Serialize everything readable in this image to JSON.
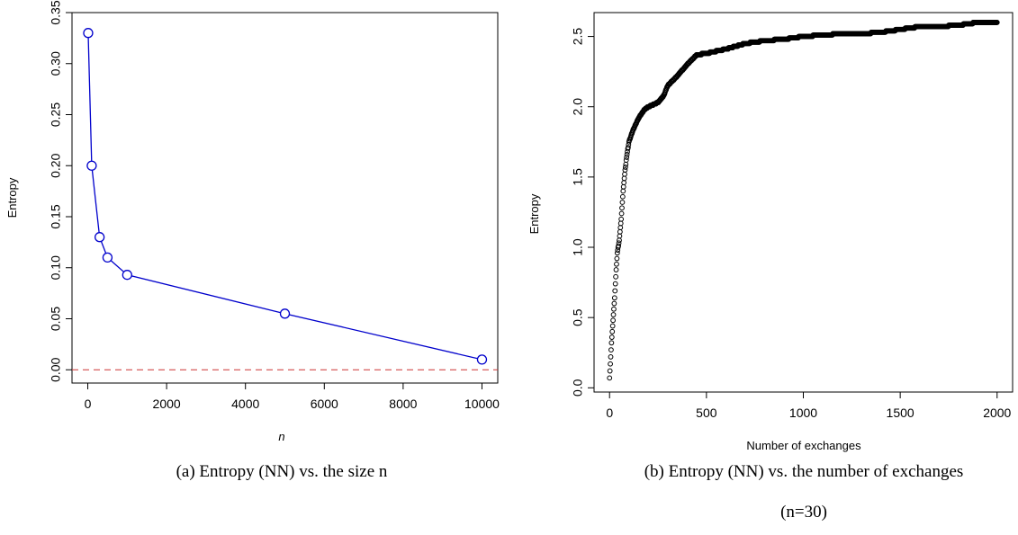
{
  "chart_data": [
    {
      "type": "line",
      "xlabel": "n",
      "ylabel": "Entropy",
      "xlim": [
        -400,
        10400
      ],
      "ylim": [
        -0.013,
        0.35
      ],
      "x_ticks": [
        0,
        2000,
        4000,
        6000,
        8000,
        10000
      ],
      "x_tick_labels": [
        "0",
        "2000",
        "4000",
        "6000",
        "8000",
        "10000"
      ],
      "y_ticks": [
        0.0,
        0.05,
        0.1,
        0.15,
        0.2,
        0.25,
        0.3,
        0.35
      ],
      "y_tick_labels": [
        "0.00",
        "0.05",
        "0.10",
        "0.15",
        "0.20",
        "0.25",
        "0.30",
        "0.35"
      ],
      "series": [
        {
          "x": [
            10,
            100,
            300,
            500,
            1000,
            5000,
            10000
          ],
          "y": [
            0.33,
            0.2,
            0.13,
            0.11,
            0.093,
            0.055,
            0.01
          ],
          "color": "#0000cc",
          "marker": "open-circle"
        }
      ],
      "reference_line": {
        "y": 0,
        "color": "#cc3333",
        "style": "dashed"
      },
      "caption": "(a) Entropy (NN) vs. the size n"
    },
    {
      "type": "scatter",
      "xlabel": "Number of exchanges",
      "ylabel": "Entropy",
      "xlim": [
        -80,
        2080
      ],
      "ylim": [
        -0.03,
        2.67
      ],
      "x_ticks": [
        0,
        500,
        1000,
        1500,
        2000
      ],
      "x_tick_labels": [
        "0",
        "500",
        "1000",
        "1500",
        "2000"
      ],
      "y_ticks": [
        0.0,
        0.5,
        1.0,
        1.5,
        2.0,
        2.5
      ],
      "y_tick_labels": [
        "0.0",
        "0.5",
        "1.0",
        "1.5",
        "2.0",
        "2.5"
      ],
      "curve_points": [
        [
          0,
          0.07
        ],
        [
          5,
          0.2
        ],
        [
          10,
          0.32
        ],
        [
          15,
          0.42
        ],
        [
          20,
          0.52
        ],
        [
          25,
          0.62
        ],
        [
          30,
          0.74
        ],
        [
          35,
          0.86
        ],
        [
          40,
          0.96
        ],
        [
          50,
          1.05
        ],
        [
          60,
          1.2
        ],
        [
          70,
          1.4
        ],
        [
          80,
          1.55
        ],
        [
          90,
          1.66
        ],
        [
          100,
          1.75
        ],
        [
          120,
          1.83
        ],
        [
          150,
          1.92
        ],
        [
          180,
          1.98
        ],
        [
          200,
          2.0
        ],
        [
          250,
          2.03
        ],
        [
          280,
          2.08
        ],
        [
          300,
          2.15
        ],
        [
          350,
          2.22
        ],
        [
          400,
          2.3
        ],
        [
          450,
          2.37
        ],
        [
          500,
          2.38
        ],
        [
          600,
          2.41
        ],
        [
          700,
          2.45
        ],
        [
          800,
          2.47
        ],
        [
          900,
          2.48
        ],
        [
          1000,
          2.5
        ],
        [
          1100,
          2.51
        ],
        [
          1200,
          2.52
        ],
        [
          1300,
          2.52
        ],
        [
          1400,
          2.53
        ],
        [
          1500,
          2.55
        ],
        [
          1600,
          2.57
        ],
        [
          1700,
          2.57
        ],
        [
          1800,
          2.58
        ],
        [
          1900,
          2.6
        ],
        [
          2000,
          2.6
        ]
      ],
      "series": [
        {
          "color": "#000000",
          "marker": "open-circle"
        }
      ],
      "caption": "(b) Entropy (NN) vs. the number of exchanges",
      "caption_line2": "(n=30)"
    }
  ]
}
